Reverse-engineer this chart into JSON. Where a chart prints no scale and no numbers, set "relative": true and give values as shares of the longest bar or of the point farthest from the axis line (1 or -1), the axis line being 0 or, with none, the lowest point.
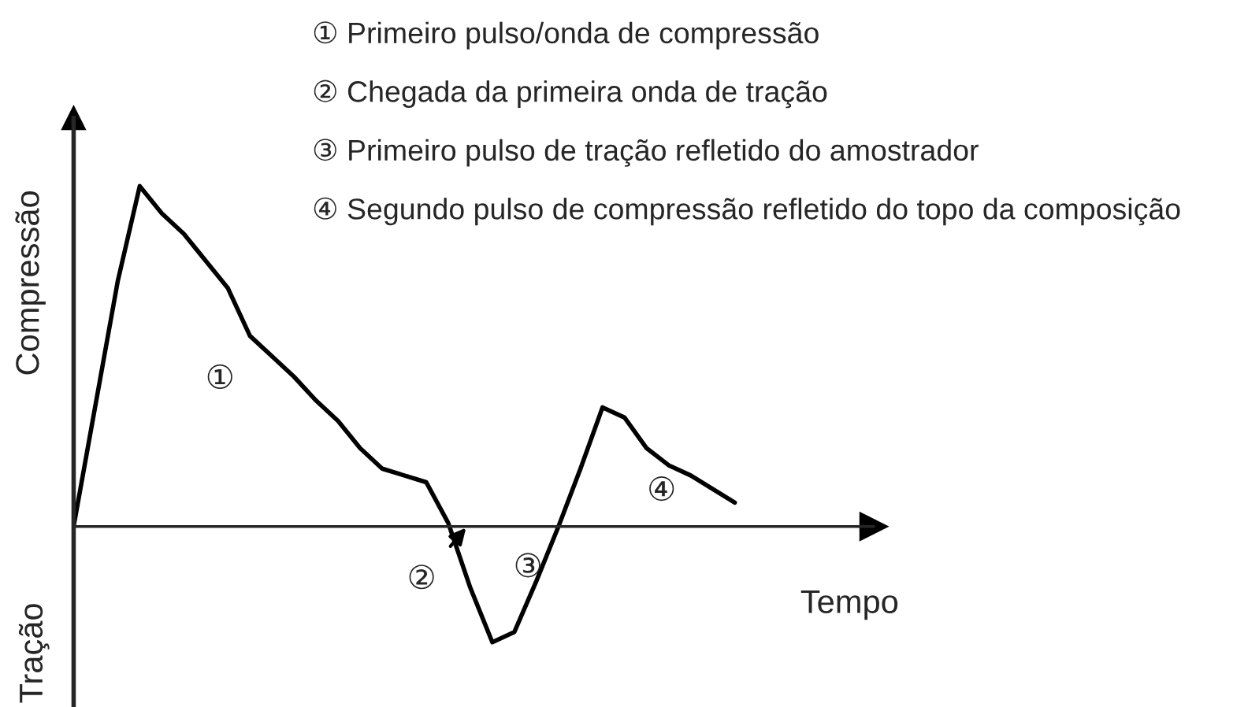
{
  "chart_data": {
    "type": "line",
    "relative": true,
    "ylabel": "Compressão",
    "xlabel": "Tempo",
    "categories": [
      null,
      null,
      null,
      null,
      null,
      null,
      null,
      null,
      null,
      null,
      null,
      null,
      null,
      null,
      null,
      null,
      null,
      null,
      null,
      null,
      null,
      null,
      null,
      null,
      null,
      null,
      null,
      null,
      null,
      null,
      null
    ],
    "series": [
      {
        "color": "#000000",
        "values": [
          0,
          0.36,
          0.72,
          1.0,
          0.92,
          0.86,
          0.78,
          0.7,
          0.56,
          0.5,
          0.44,
          0.37,
          0.31,
          0.23,
          0.17,
          0.15,
          0.13,
          0.01,
          -0.18,
          -0.34,
          -0.31,
          -0.16,
          0,
          0.17,
          0.35,
          0.32,
          0.23,
          0.18,
          0.15,
          0.11,
          0.07
        ]
      }
    ],
    "annotations": [
      "Tração",
      "① Primeiro pulso/onda de compressão",
      "② Chegada da primeira onda de tração",
      "③ Primeiro pulso de tração refletido do amostrador",
      "④ Segundo pulso de compressão refletido do topo da composição",
      "①",
      "②",
      "③",
      "④"
    ],
    "line_style": "solid"
  }
}
